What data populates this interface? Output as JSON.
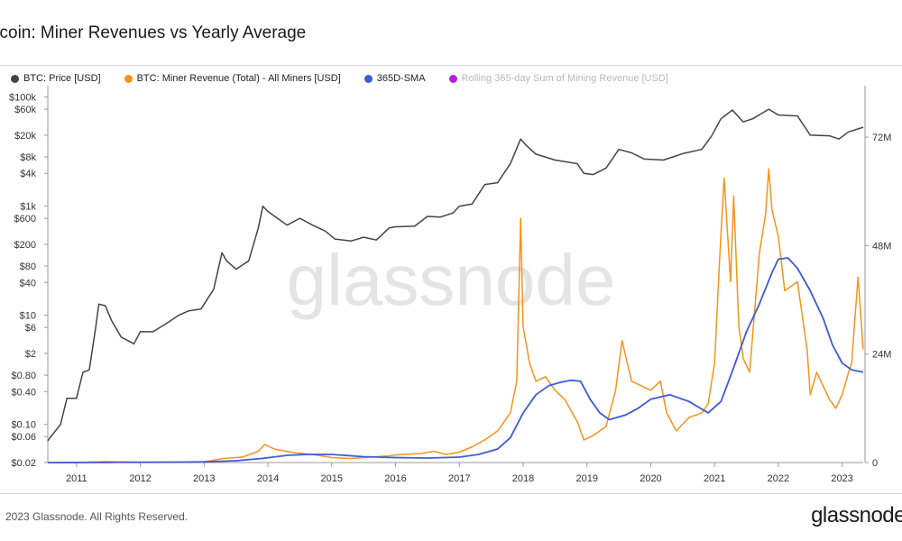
{
  "title": "itcoin: Miner Revenues vs Yearly Average",
  "legend": [
    {
      "label": "BTC: Price [USD]",
      "color": "#444444",
      "muted": false
    },
    {
      "label": "BTC: Miner Revenue (Total) - All Miners [USD]",
      "color": "#f7931a",
      "muted": false
    },
    {
      "label": "365D-SMA",
      "color": "#3d5bd4",
      "muted": false
    },
    {
      "label": "Rolling 365-day Sum of Mining Revenue [USD]",
      "color": "#b620e0",
      "muted": true
    }
  ],
  "watermark": "glassnode",
  "footer": "2023 Glassnode. All Rights Reserved.",
  "brand": "glassnode",
  "chart_data": {
    "type": "line",
    "x_range": [
      2010.55,
      2023.33
    ],
    "x_ticks": [
      "2011",
      "2012",
      "2013",
      "2014",
      "2015",
      "2016",
      "2017",
      "2018",
      "2019",
      "2020",
      "2021",
      "2022",
      "2023"
    ],
    "y_left": {
      "scale": "log",
      "range": [
        0.02,
        150000
      ],
      "ticks": [
        [
          100000,
          "$100k"
        ],
        [
          60000,
          "$60k"
        ],
        [
          20000,
          "$20k"
        ],
        [
          8000,
          "$8k"
        ],
        [
          4000,
          "$4k"
        ],
        [
          1000,
          "$1k"
        ],
        [
          600,
          "$600"
        ],
        [
          200,
          "$200"
        ],
        [
          80,
          "$80"
        ],
        [
          40,
          "$40"
        ],
        [
          10,
          "$10"
        ],
        [
          6,
          "$6"
        ],
        [
          2,
          "$2"
        ],
        [
          0.8,
          "$0.80"
        ],
        [
          0.4,
          "$0.40"
        ],
        [
          0.1,
          "$0.10"
        ],
        [
          0.06,
          "$0.06"
        ],
        [
          0.02,
          "$0.02"
        ]
      ]
    },
    "y_right": {
      "scale": "linear",
      "unit": "USD",
      "range": [
        0,
        83000000
      ],
      "ticks": [
        [
          0,
          "0"
        ],
        [
          24000000,
          "24M"
        ],
        [
          48000000,
          "48M"
        ],
        [
          72000000,
          "72M"
        ]
      ]
    },
    "series": [
      {
        "name": "BTC: Price [USD]",
        "axis": "left",
        "color": "#444444",
        "x": [
          2010.55,
          2010.6,
          2010.75,
          2010.85,
          2011.0,
          2011.1,
          2011.2,
          2011.3,
          2011.35,
          2011.45,
          2011.55,
          2011.7,
          2011.9,
          2012.0,
          2012.2,
          2012.4,
          2012.6,
          2012.75,
          2012.95,
          2013.15,
          2013.28,
          2013.35,
          2013.5,
          2013.7,
          2013.85,
          2013.92,
          2014.0,
          2014.15,
          2014.3,
          2014.5,
          2014.7,
          2014.9,
          2015.05,
          2015.3,
          2015.5,
          2015.7,
          2015.9,
          2016.0,
          2016.3,
          2016.5,
          2016.7,
          2016.9,
          2017.0,
          2017.2,
          2017.4,
          2017.6,
          2017.8,
          2017.96,
          2018.05,
          2018.2,
          2018.5,
          2018.85,
          2018.95,
          2019.1,
          2019.3,
          2019.5,
          2019.7,
          2019.9,
          2020.2,
          2020.5,
          2020.8,
          2020.95,
          2021.1,
          2021.28,
          2021.45,
          2021.6,
          2021.85,
          2022.0,
          2022.3,
          2022.5,
          2022.8,
          2022.95,
          2023.1,
          2023.33
        ],
        "y": [
          0.05,
          0.06,
          0.1,
          0.3,
          0.3,
          0.9,
          1,
          6,
          16,
          15,
          8,
          4,
          3,
          5,
          5,
          7,
          10,
          12,
          13,
          30,
          140,
          100,
          70,
          100,
          400,
          1000,
          800,
          600,
          450,
          600,
          450,
          350,
          250,
          230,
          270,
          240,
          400,
          420,
          430,
          650,
          630,
          750,
          1000,
          1100,
          2500,
          2700,
          6000,
          17000,
          13000,
          9000,
          7000,
          6000,
          4000,
          3800,
          5000,
          11000,
          9500,
          7300,
          7000,
          9200,
          11000,
          19000,
          40000,
          58000,
          35000,
          40000,
          60000,
          47000,
          45000,
          20000,
          19500,
          17000,
          23000,
          28000
        ]
      },
      {
        "name": "BTC: Miner Revenue (Total) - All Miners [USD]",
        "axis": "right",
        "color": "#f7931a",
        "x": [
          2010.55,
          2011.0,
          2011.45,
          2012.0,
          2013.0,
          2013.3,
          2013.6,
          2013.85,
          2013.95,
          2014.1,
          2014.4,
          2014.7,
          2015.0,
          2015.3,
          2015.6,
          2015.9,
          2016.0,
          2016.4,
          2016.6,
          2016.8,
          2017.0,
          2017.2,
          2017.4,
          2017.6,
          2017.8,
          2017.9,
          2017.96,
          2018.0,
          2018.1,
          2018.2,
          2018.35,
          2018.5,
          2018.65,
          2018.85,
          2018.95,
          2019.1,
          2019.3,
          2019.45,
          2019.55,
          2019.7,
          2019.85,
          2020.0,
          2020.15,
          2020.25,
          2020.4,
          2020.6,
          2020.8,
          2020.9,
          2021.0,
          2021.08,
          2021.15,
          2021.25,
          2021.3,
          2021.38,
          2021.45,
          2021.55,
          2021.7,
          2021.8,
          2021.85,
          2021.9,
          2022.0,
          2022.1,
          2022.3,
          2022.45,
          2022.5,
          2022.6,
          2022.8,
          2022.9,
          2023.0,
          2023.1,
          2023.15,
          2023.2,
          2023.25,
          2023.33
        ],
        "y": [
          0,
          0,
          200000,
          100000,
          150000,
          900000,
          1200000,
          2500000,
          4000000,
          3000000,
          2200000,
          1800000,
          1100000,
          900000,
          1200000,
          1500000,
          1700000,
          2000000,
          2500000,
          1800000,
          2300000,
          3500000,
          5000000,
          7000000,
          11000000,
          18000000,
          54000000,
          30000000,
          22000000,
          18000000,
          19000000,
          16000000,
          14000000,
          9000000,
          5000000,
          6000000,
          8000000,
          16000000,
          27000000,
          18000000,
          17000000,
          16000000,
          18000000,
          11000000,
          7000000,
          10000000,
          11000000,
          13000000,
          22000000,
          45000000,
          63000000,
          40000000,
          59000000,
          30000000,
          23000000,
          20000000,
          46000000,
          55000000,
          65000000,
          56000000,
          50000000,
          38000000,
          40000000,
          25000000,
          15000000,
          20000000,
          14000000,
          12000000,
          15000000,
          20000000,
          22000000,
          32000000,
          41000000,
          25000000
        ]
      },
      {
        "name": "365D-SMA",
        "axis": "right",
        "color": "#3d5bd4",
        "x": [
          2010.55,
          2011.5,
          2012.5,
          2013.0,
          2013.5,
          2013.9,
          2014.3,
          2014.6,
          2015.0,
          2015.5,
          2016.0,
          2016.5,
          2017.0,
          2017.3,
          2017.6,
          2017.8,
          2018.0,
          2018.2,
          2018.4,
          2018.6,
          2018.75,
          2018.9,
          2019.05,
          2019.2,
          2019.35,
          2019.6,
          2019.8,
          2020.0,
          2020.3,
          2020.6,
          2020.9,
          2021.1,
          2021.3,
          2021.5,
          2021.7,
          2021.9,
          2022.0,
          2022.15,
          2022.3,
          2022.5,
          2022.7,
          2022.85,
          2023.0,
          2023.15,
          2023.33
        ],
        "y": [
          0,
          30000,
          80000,
          150000,
          400000,
          900000,
          1600000,
          1800000,
          1800000,
          1300000,
          1100000,
          1000000,
          1200000,
          1800000,
          3000000,
          5500000,
          11000000,
          15000000,
          17000000,
          17800000,
          18200000,
          18000000,
          14000000,
          11000000,
          9500000,
          10500000,
          12000000,
          14000000,
          15000000,
          13500000,
          11000000,
          13500000,
          21000000,
          29000000,
          35000000,
          42000000,
          45000000,
          45300000,
          43000000,
          38000000,
          32000000,
          26000000,
          22000000,
          20500000,
          20000000
        ]
      },
      {
        "name": "Rolling 365-day Sum of Mining Revenue [USD]",
        "axis": "right",
        "color": "#b620e0",
        "x": [],
        "y": []
      }
    ]
  }
}
